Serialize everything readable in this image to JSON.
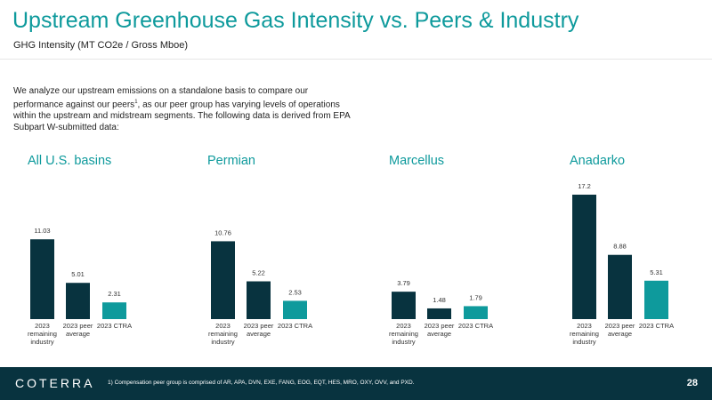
{
  "header": {
    "title": "Upstream Greenhouse Gas Intensity vs. Peers & Industry",
    "subtitle": "GHG Intensity (MT CO2e / Gross Mboe)"
  },
  "intro": {
    "part1": "We analyze our upstream emissions on a standalone basis to compare our performance against our peers",
    "sup": "1",
    "part2": ", as our peer group has varying levels of operations within the upstream and midstream segments. The following data is derived from EPA Subpart W-submitted data:"
  },
  "colors": {
    "industry": "#08333f",
    "peer": "#08333f",
    "ctra": "#0e9a9c",
    "title": "#0e9a9c"
  },
  "chart_data": [
    {
      "type": "bar",
      "title": "All U.S. basins",
      "categories": [
        "2023 remaining industry",
        "2023 peer average",
        "2023 CTRA"
      ],
      "values": [
        11.03,
        5.01,
        2.31
      ],
      "labels": [
        "11.03",
        "5.01",
        "2.31"
      ]
    },
    {
      "type": "bar",
      "title": "Permian",
      "categories": [
        "2023 remaining industry",
        "2023 peer average",
        "2023 CTRA"
      ],
      "values": [
        10.76,
        5.22,
        2.53
      ],
      "labels": [
        "10.76",
        "5.22",
        "2.53"
      ]
    },
    {
      "type": "bar",
      "title": "Marcellus",
      "categories": [
        "2023 remaining industry",
        "2023 peer average",
        "2023 CTRA"
      ],
      "values": [
        3.79,
        1.48,
        1.79
      ],
      "labels": [
        "3.79",
        "1.48",
        "1.79"
      ]
    },
    {
      "type": "bar",
      "title": "Anadarko",
      "categories": [
        "2023 remaining industry",
        "2023 peer average",
        "2023 CTRA"
      ],
      "values": [
        17.2,
        8.88,
        5.31
      ],
      "labels": [
        "17.2",
        "8.88",
        "5.31"
      ]
    }
  ],
  "footer": {
    "logo": "COTERRA",
    "footnote": "1) Compensation peer group is comprised of AR, APA, DVN, EXE, FANG, EOG, EQT, HES, MRO, OXY, OVV, and PXD.",
    "page": "28"
  }
}
